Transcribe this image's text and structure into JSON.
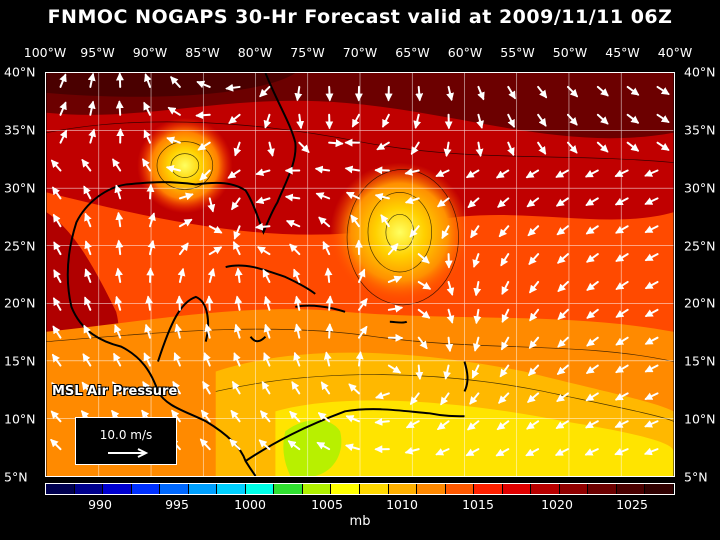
{
  "title": "FNMOC NOGAPS 30-Hr Forecast valid at 2009/11/11 06Z",
  "layer_label": "MSL Air Pressure",
  "reference_vector": "10.0 m/s",
  "unit": "mb",
  "longitude_labels": [
    "100°W",
    "95°W",
    "90°W",
    "85°W",
    "80°W",
    "75°W",
    "70°W",
    "65°W",
    "60°W",
    "55°W",
    "50°W",
    "45°W",
    "40°W"
  ],
  "latitude_labels": [
    "40°N",
    "35°N",
    "30°N",
    "25°N",
    "20°N",
    "15°N",
    "10°N",
    "5°N"
  ],
  "colorbar": {
    "colors": [
      "#000050",
      "#00008c",
      "#0000d0",
      "#0030ff",
      "#0068ff",
      "#00a0ff",
      "#00d0ff",
      "#00ffe8",
      "#30e030",
      "#b0f000",
      "#ffff00",
      "#ffd800",
      "#ffb000",
      "#ff8800",
      "#ff5800",
      "#ff2000",
      "#e00000",
      "#b80000",
      "#900000",
      "#6c0000",
      "#4a0000",
      "#300000"
    ],
    "labels": [
      "990",
      "995",
      "1000",
      "1005",
      "1010",
      "1015",
      "1020",
      "1025"
    ]
  },
  "pressure_systems": [
    {
      "name": "Gulf low",
      "lon": -87,
      "lat": 30.5
    },
    {
      "name": "Atlantic low",
      "lon": -65.5,
      "lat": 26
    }
  ],
  "colors": {
    "land_outline": "#000000",
    "vectors": "#ffffff",
    "grid": "#ffffff"
  }
}
